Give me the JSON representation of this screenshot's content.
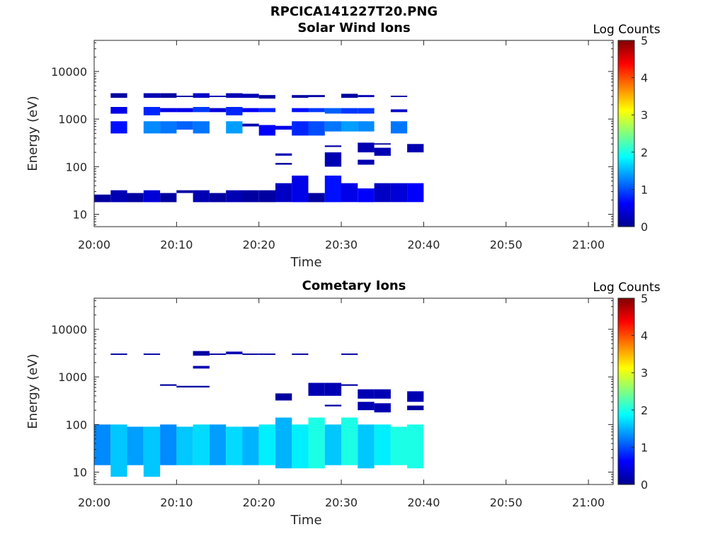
{
  "figure_title": "RPCICA141227T20.PNG",
  "colormap": [
    "#00008f",
    "#0000ff",
    "#0080ff",
    "#00ffff",
    "#80ff80",
    "#ffff00",
    "#ff8000",
    "#ff0000",
    "#800000"
  ],
  "chart_data": [
    {
      "type": "heatmap",
      "title": "Solar Wind Ions",
      "xlabel": "Time",
      "ylabel": "Energy (eV)",
      "y_scale": "log",
      "xlim": [
        "20:00",
        "21:03"
      ],
      "ylim": [
        5.5,
        45000
      ],
      "x_ticks": [
        "20:00",
        "20:10",
        "20:20",
        "20:30",
        "20:40",
        "20:50",
        "21:00"
      ],
      "y_ticks": [
        "10",
        "100",
        "1000",
        "10000"
      ],
      "colorbar": {
        "label": "Log Counts",
        "range": [
          0,
          5
        ],
        "ticks": [
          "0",
          "1",
          "2",
          "3",
          "4",
          "5"
        ]
      },
      "cells": [
        [
          "20:00",
          "20:02",
          18,
          26,
          0.1
        ],
        [
          "20:02",
          "20:04",
          18,
          32,
          0.2
        ],
        [
          "20:02",
          "20:04",
          2800,
          3500,
          0.1
        ],
        [
          "20:02",
          "20:04",
          1300,
          1800,
          0.5
        ],
        [
          "20:02",
          "20:04",
          500,
          900,
          0.7
        ],
        [
          "20:04",
          "20:06",
          18,
          28,
          0.1
        ],
        [
          "20:06",
          "20:08",
          18,
          32,
          0.4
        ],
        [
          "20:06",
          "20:08",
          2800,
          3500,
          0.2
        ],
        [
          "20:06",
          "20:08",
          1200,
          1800,
          0.8
        ],
        [
          "20:06",
          "20:08",
          500,
          900,
          1.3
        ],
        [
          "20:08",
          "20:10",
          18,
          28,
          0.1
        ],
        [
          "20:08",
          "20:10",
          2800,
          3500,
          0.1
        ],
        [
          "20:08",
          "20:10",
          1400,
          1700,
          0.5
        ],
        [
          "20:08",
          "20:10",
          500,
          900,
          1.2
        ],
        [
          "20:10",
          "20:12",
          28,
          32,
          0.1
        ],
        [
          "20:10",
          "20:12",
          2900,
          3100,
          0.1
        ],
        [
          "20:10",
          "20:12",
          1400,
          1700,
          0.5
        ],
        [
          "20:10",
          "20:12",
          600,
          900,
          1.1
        ],
        [
          "20:12",
          "20:14",
          18,
          32,
          0.2
        ],
        [
          "20:12",
          "20:14",
          2800,
          3500,
          0.3
        ],
        [
          "20:12",
          "20:14",
          1400,
          1800,
          0.9
        ],
        [
          "20:12",
          "20:14",
          500,
          900,
          1.2
        ],
        [
          "20:14",
          "20:16",
          18,
          28,
          0.1
        ],
        [
          "20:14",
          "20:16",
          2900,
          3100,
          0.2
        ],
        [
          "20:14",
          "20:16",
          1400,
          1700,
          0.4
        ],
        [
          "20:16",
          "20:18",
          18,
          32,
          0.2
        ],
        [
          "20:16",
          "20:18",
          2800,
          3500,
          0.2
        ],
        [
          "20:16",
          "20:18",
          1200,
          1800,
          0.8
        ],
        [
          "20:16",
          "20:18",
          500,
          900,
          1.4
        ],
        [
          "20:18",
          "20:20",
          18,
          32,
          0.1
        ],
        [
          "20:18",
          "20:20",
          2800,
          3400,
          0.2
        ],
        [
          "20:18",
          "20:20",
          1400,
          1700,
          0.6
        ],
        [
          "20:18",
          "20:20",
          700,
          800,
          0.2
        ],
        [
          "20:20",
          "20:22",
          18,
          32,
          0.1
        ],
        [
          "20:20",
          "20:22",
          2700,
          3200,
          0.1
        ],
        [
          "20:20",
          "20:22",
          1400,
          1700,
          0.8
        ],
        [
          "20:20",
          "20:22",
          450,
          750,
          0.6
        ],
        [
          "20:22",
          "20:24",
          18,
          45,
          0.3
        ],
        [
          "20:22",
          "20:24",
          170,
          190,
          0.2
        ],
        [
          "20:22",
          "20:24",
          110,
          120,
          0.1
        ],
        [
          "20:22",
          "20:24",
          600,
          720,
          0.5
        ],
        [
          "20:24",
          "20:26",
          18,
          65,
          0.5
        ],
        [
          "20:24",
          "20:26",
          2800,
          3200,
          0.1
        ],
        [
          "20:24",
          "20:26",
          1400,
          1700,
          0.7
        ],
        [
          "20:24",
          "20:26",
          450,
          900,
          0.8
        ],
        [
          "20:26",
          "20:28",
          18,
          28,
          0.1
        ],
        [
          "20:26",
          "20:28",
          2900,
          3200,
          0.1
        ],
        [
          "20:26",
          "20:28",
          1400,
          1700,
          0.9
        ],
        [
          "20:26",
          "20:28",
          450,
          900,
          1.0
        ],
        [
          "20:28",
          "20:30",
          18,
          65,
          0.7
        ],
        [
          "20:28",
          "20:30",
          100,
          200,
          0.2
        ],
        [
          "20:28",
          "20:30",
          260,
          280,
          0.1
        ],
        [
          "20:28",
          "20:30",
          1300,
          1700,
          1.1
        ],
        [
          "20:28",
          "20:30",
          550,
          900,
          1.2
        ],
        [
          "20:30",
          "20:32",
          18,
          45,
          0.5
        ],
        [
          "20:30",
          "20:32",
          2800,
          3400,
          0.1
        ],
        [
          "20:30",
          "20:32",
          1300,
          1700,
          0.9
        ],
        [
          "20:30",
          "20:32",
          550,
          900,
          1.4
        ],
        [
          "20:32",
          "20:34",
          18,
          35,
          0.6
        ],
        [
          "20:32",
          "20:34",
          110,
          140,
          0.2
        ],
        [
          "20:32",
          "20:34",
          200,
          320,
          0.2
        ],
        [
          "20:32",
          "20:34",
          2900,
          3200,
          0.2
        ],
        [
          "20:32",
          "20:34",
          1300,
          1700,
          0.9
        ],
        [
          "20:32",
          "20:34",
          550,
          900,
          1.3
        ],
        [
          "20:34",
          "20:36",
          18,
          45,
          0.3
        ],
        [
          "20:34",
          "20:36",
          170,
          250,
          0.2
        ],
        [
          "20:34",
          "20:36",
          290,
          310,
          0.1
        ],
        [
          "20:36",
          "20:38",
          18,
          45,
          0.4
        ],
        [
          "20:36",
          "20:38",
          2900,
          3100,
          0.1
        ],
        [
          "20:36",
          "20:38",
          1400,
          1600,
          0.3
        ],
        [
          "20:36",
          "20:38",
          500,
          900,
          1.2
        ],
        [
          "20:38",
          "20:40",
          18,
          45,
          0.6
        ],
        [
          "20:38",
          "20:40",
          200,
          300,
          0.2
        ]
      ]
    },
    {
      "type": "heatmap",
      "title": "Cometary Ions",
      "xlabel": "Time",
      "ylabel": "Energy (eV)",
      "y_scale": "log",
      "xlim": [
        "20:00",
        "21:03"
      ],
      "ylim": [
        5.5,
        45000
      ],
      "x_ticks": [
        "20:00",
        "20:10",
        "20:20",
        "20:30",
        "20:40",
        "20:50",
        "21:00"
      ],
      "y_ticks": [
        "10",
        "100",
        "1000",
        "10000"
      ],
      "colorbar": {
        "label": "Log Counts",
        "range": [
          0,
          5
        ],
        "ticks": [
          "0",
          "1",
          "2",
          "3",
          "4",
          "5"
        ]
      },
      "cells": [
        [
          "20:00",
          "20:02",
          14,
          100,
          1.3
        ],
        [
          "20:02",
          "20:04",
          8,
          100,
          1.6
        ],
        [
          "20:02",
          "20:04",
          2900,
          3100,
          0.1
        ],
        [
          "20:04",
          "20:06",
          14,
          90,
          1.4
        ],
        [
          "20:06",
          "20:08",
          8,
          90,
          1.6
        ],
        [
          "20:06",
          "20:08",
          2900,
          3100,
          0.1
        ],
        [
          "20:08",
          "20:10",
          14,
          100,
          1.3
        ],
        [
          "20:08",
          "20:10",
          650,
          700,
          0.1
        ],
        [
          "20:10",
          "20:12",
          14,
          90,
          1.6
        ],
        [
          "20:10",
          "20:12",
          600,
          650,
          0.1
        ],
        [
          "20:12",
          "20:14",
          14,
          100,
          1.7
        ],
        [
          "20:12",
          "20:14",
          2800,
          3500,
          0.1
        ],
        [
          "20:12",
          "20:14",
          1500,
          1700,
          0.2
        ],
        [
          "20:12",
          "20:14",
          600,
          650,
          0.1
        ],
        [
          "20:14",
          "20:16",
          14,
          100,
          1.4
        ],
        [
          "20:14",
          "20:16",
          2900,
          3100,
          0.1
        ],
        [
          "20:16",
          "20:18",
          14,
          90,
          1.7
        ],
        [
          "20:16",
          "20:18",
          3000,
          3400,
          0.2
        ],
        [
          "20:18",
          "20:20",
          14,
          90,
          1.5
        ],
        [
          "20:18",
          "20:20",
          2900,
          3100,
          0.1
        ],
        [
          "20:20",
          "20:22",
          14,
          100,
          1.8
        ],
        [
          "20:20",
          "20:22",
          2900,
          3100,
          0.1
        ],
        [
          "20:22",
          "20:24",
          12,
          140,
          1.5
        ],
        [
          "20:22",
          "20:24",
          320,
          450,
          0.1
        ],
        [
          "20:24",
          "20:26",
          12,
          100,
          1.8
        ],
        [
          "20:24",
          "20:26",
          2900,
          3100,
          0.1
        ],
        [
          "20:26",
          "20:28",
          12,
          140,
          2.0
        ],
        [
          "20:26",
          "20:28",
          400,
          750,
          0.2
        ],
        [
          "20:28",
          "20:30",
          14,
          100,
          1.6
        ],
        [
          "20:28",
          "20:30",
          240,
          260,
          0.1
        ],
        [
          "20:28",
          "20:30",
          400,
          750,
          0.2
        ],
        [
          "20:30",
          "20:32",
          14,
          140,
          2.0
        ],
        [
          "20:30",
          "20:32",
          2900,
          3100,
          0.1
        ],
        [
          "20:30",
          "20:32",
          650,
          700,
          0.1
        ],
        [
          "20:32",
          "20:34",
          12,
          100,
          1.6
        ],
        [
          "20:32",
          "20:34",
          200,
          300,
          0.2
        ],
        [
          "20:32",
          "20:34",
          350,
          550,
          0.2
        ],
        [
          "20:34",
          "20:36",
          14,
          100,
          1.8
        ],
        [
          "20:34",
          "20:36",
          180,
          280,
          0.2
        ],
        [
          "20:34",
          "20:36",
          350,
          550,
          0.2
        ],
        [
          "20:36",
          "20:38",
          14,
          90,
          2.0
        ],
        [
          "20:38",
          "20:40",
          12,
          100,
          2.0
        ],
        [
          "20:38",
          "20:40",
          200,
          250,
          0.1
        ],
        [
          "20:38",
          "20:40",
          300,
          500,
          0.2
        ]
      ]
    }
  ]
}
